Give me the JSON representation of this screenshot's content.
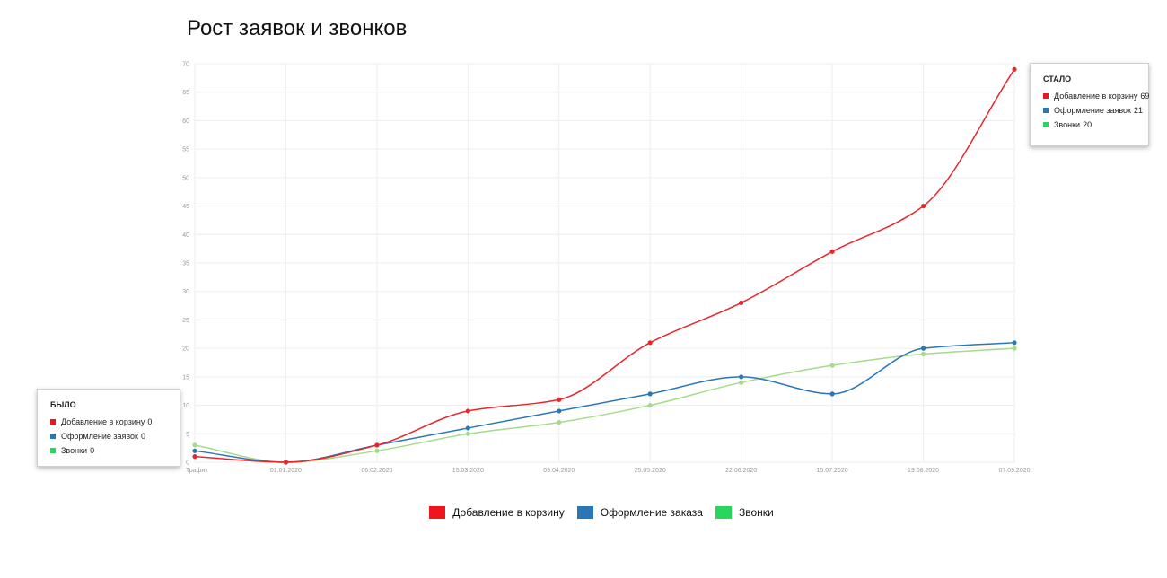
{
  "chart_data": {
    "type": "line",
    "title": "Рост заявок и звонков",
    "categories": [
      "Трафик",
      "01.01.2020",
      "06.02.2020",
      "15.03.2020",
      "09.04.2020",
      "25.05.2020",
      "22.06.2020",
      "15.07.2020",
      "19.08.2020",
      "07.09.2020"
    ],
    "yticks": [
      0,
      5,
      10,
      15,
      20,
      25,
      30,
      35,
      40,
      45,
      50,
      55,
      60,
      65,
      70
    ],
    "ylim": [
      0,
      70
    ],
    "grid": true,
    "series": [
      {
        "name": "Добавление в корзину",
        "color": "#e8262b",
        "values": [
          1,
          0,
          3,
          9,
          11,
          21,
          28,
          37,
          45,
          69
        ]
      },
      {
        "name": "Оформление заказа",
        "color": "#2a77b8",
        "values": [
          2,
          0,
          3,
          6,
          9,
          12,
          15,
          12,
          20,
          21
        ]
      },
      {
        "name": "Звонки",
        "color": "#a6db8a",
        "values": [
          3,
          0,
          2,
          5,
          7,
          10,
          14,
          17,
          19,
          20
        ]
      }
    ],
    "legend": {
      "position": "bottom",
      "items": [
        {
          "label": "Добавление в корзину",
          "color": "#f0151c"
        },
        {
          "label": "Оформление заказа",
          "color": "#2a77b8"
        },
        {
          "label": "Звонки",
          "color": "#29d65c"
        }
      ]
    },
    "tooltip_before": {
      "title": "БЫЛО",
      "rows": [
        {
          "label": "Добавление в корзину",
          "value": "0",
          "color": "#f0151c"
        },
        {
          "label": "Оформление заявок",
          "value": "0",
          "color": "#2a77b8"
        },
        {
          "label": "Звонки",
          "value": "0",
          "color": "#29d65c"
        }
      ]
    },
    "tooltip_after": {
      "title": "СТАЛО",
      "rows": [
        {
          "label": "Добавление в корзину",
          "value": "69",
          "color": "#f0151c"
        },
        {
          "label": "Оформление заявок",
          "value": "21",
          "color": "#2a77b8"
        },
        {
          "label": "Звонки",
          "value": "20",
          "color": "#29d65c"
        }
      ]
    }
  }
}
